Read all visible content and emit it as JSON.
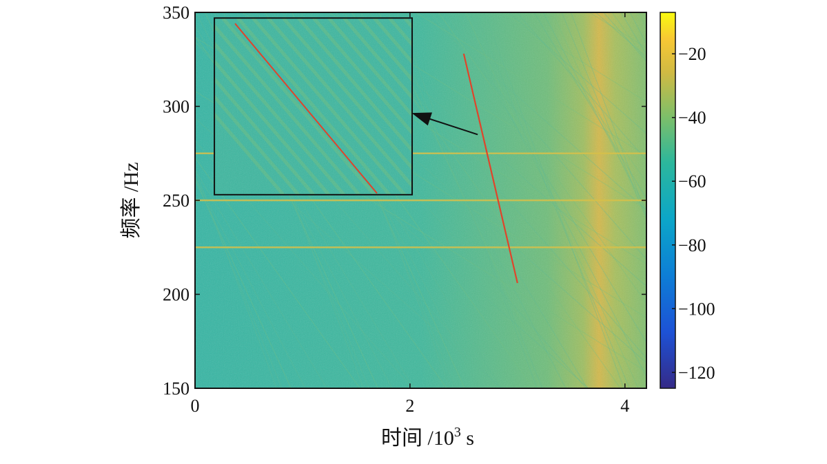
{
  "chart_data": {
    "type": "heatmap",
    "title": "",
    "xlabel_prefix": "时间 /10",
    "xlabel_sup": "3",
    "xlabel_suffix": " s",
    "ylabel": "频率 /Hz",
    "xlim": [
      0,
      4.2
    ],
    "ylim": [
      150,
      350
    ],
    "x_ticks": [
      "0",
      "2",
      "4"
    ],
    "y_ticks": [
      "150",
      "200",
      "250",
      "300",
      "350"
    ],
    "colorbar": {
      "colormap": "parula",
      "range": [
        -125,
        -7
      ],
      "ticks": [
        "−20",
        "−40",
        "−60",
        "−80",
        "−100",
        "−120"
      ]
    },
    "background_level": -55,
    "horizontal_lines_hz": [
      275,
      250,
      225
    ],
    "hot_band_time": [
      3.7,
      3.95
    ],
    "red_track": {
      "x": [
        2.5,
        3.0
      ],
      "y": [
        328,
        206
      ],
      "color": "#e0442a"
    },
    "inset": {
      "x_range": [
        0.18,
        2.02
      ],
      "y_range": [
        253,
        347
      ],
      "red_line_color": "#e0442a"
    },
    "arrow": {
      "from": [
        2.63,
        285
      ],
      "to": [
        2.04,
        296
      ]
    }
  }
}
